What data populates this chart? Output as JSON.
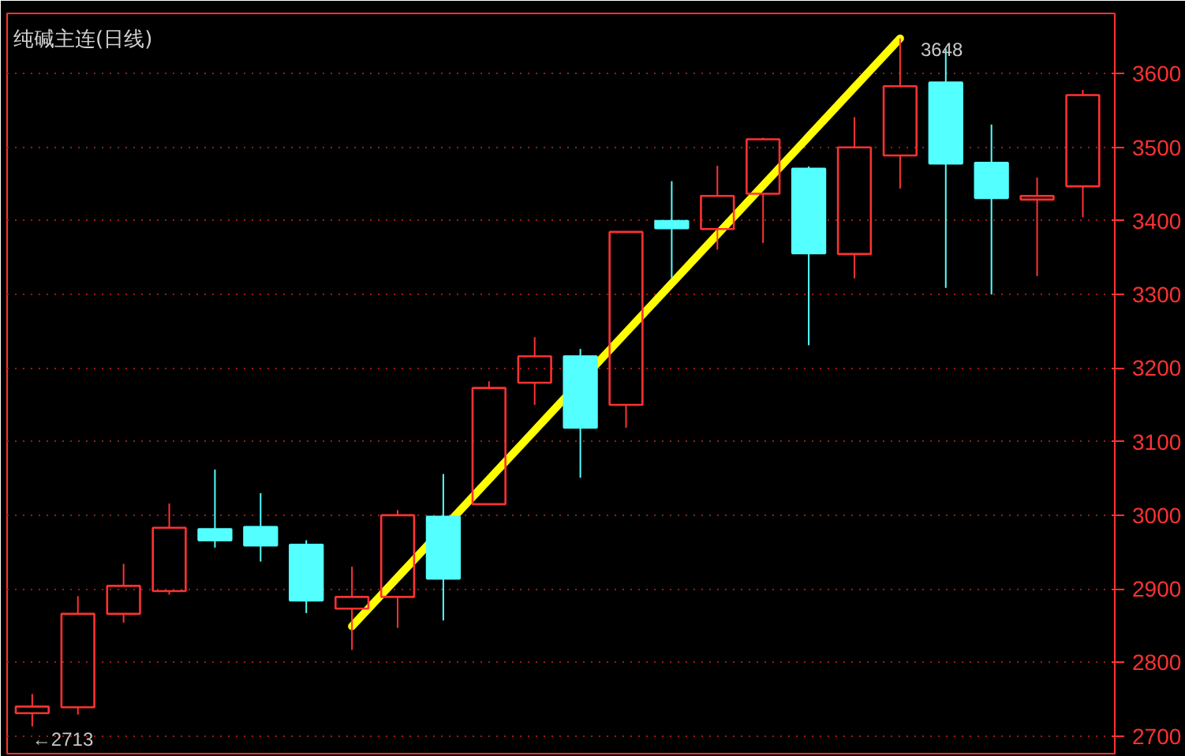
{
  "chart_data": {
    "type": "candlestick",
    "title": "纯碱主连(日线)",
    "categories": [
      null,
      null,
      null,
      null,
      null,
      null,
      null,
      null,
      null,
      null,
      null,
      null,
      null,
      null,
      null,
      null,
      null,
      null,
      null,
      null,
      null,
      null,
      null,
      null
    ],
    "ohlc": [
      [
        2731,
        2757,
        2713,
        2740
      ],
      [
        2739,
        2890,
        2729,
        2866
      ],
      [
        2866,
        2934,
        2854,
        2904
      ],
      [
        2897,
        3016,
        2892,
        2983
      ],
      [
        2981,
        3062,
        2956,
        2966
      ],
      [
        2984,
        3030,
        2937,
        2959
      ],
      [
        2960,
        2966,
        2867,
        2884
      ],
      [
        2873,
        2930,
        2817,
        2889
      ],
      [
        2889,
        3007,
        2847,
        3000
      ],
      [
        2998,
        3056,
        2857,
        2914
      ],
      [
        3015,
        3182,
        3015,
        3173
      ],
      [
        3180,
        3242,
        3150,
        3216
      ],
      [
        3216,
        3226,
        3051,
        3119
      ],
      [
        3150,
        3385,
        3119,
        3385
      ],
      [
        3400,
        3454,
        3322,
        3390
      ],
      [
        3389,
        3475,
        3361,
        3434
      ],
      [
        3437,
        3513,
        3370,
        3511
      ],
      [
        3471,
        3474,
        3231,
        3356
      ],
      [
        3355,
        3541,
        3322,
        3500
      ],
      [
        3489,
        3648,
        3444,
        3583
      ],
      [
        3588,
        3634,
        3309,
        3478
      ],
      [
        3479,
        3531,
        3300,
        3431
      ],
      [
        3429,
        3459,
        3325,
        3434
      ],
      [
        3447,
        3578,
        3405,
        3571
      ]
    ],
    "colors": [
      "#ff3232",
      "#ff3232",
      "#ff3232",
      "#ff3232",
      "#54ffff",
      "#54ffff",
      "#54ffff",
      "#ff3232",
      "#ff3232",
      "#54ffff",
      "#ff3232",
      "#ff3232",
      "#54ffff",
      "#ff3232",
      "#54ffff",
      "#ff3232",
      "#ff3232",
      "#54ffff",
      "#ff3232",
      "#ff3232",
      "#54ffff",
      "#54ffff",
      "#ff3232",
      "#ff3232"
    ],
    "series": [
      {
        "type": "line",
        "values": [
          null,
          null,
          null,
          null,
          null,
          null,
          null,
          2849,
          null,
          null,
          null,
          null,
          null,
          null,
          null,
          null,
          null,
          null,
          null,
          3648,
          null,
          null,
          null,
          null
        ],
        "color": "#ffff00"
      }
    ],
    "ylim": [
      2676,
      3682
    ],
    "yticks": [
      2700,
      2800,
      2900,
      3000,
      3100,
      3200,
      3300,
      3400,
      3500,
      3600
    ],
    "grid": "y",
    "tick_labels": "y",
    "annotations": [
      "3648",
      "←2713"
    ]
  }
}
